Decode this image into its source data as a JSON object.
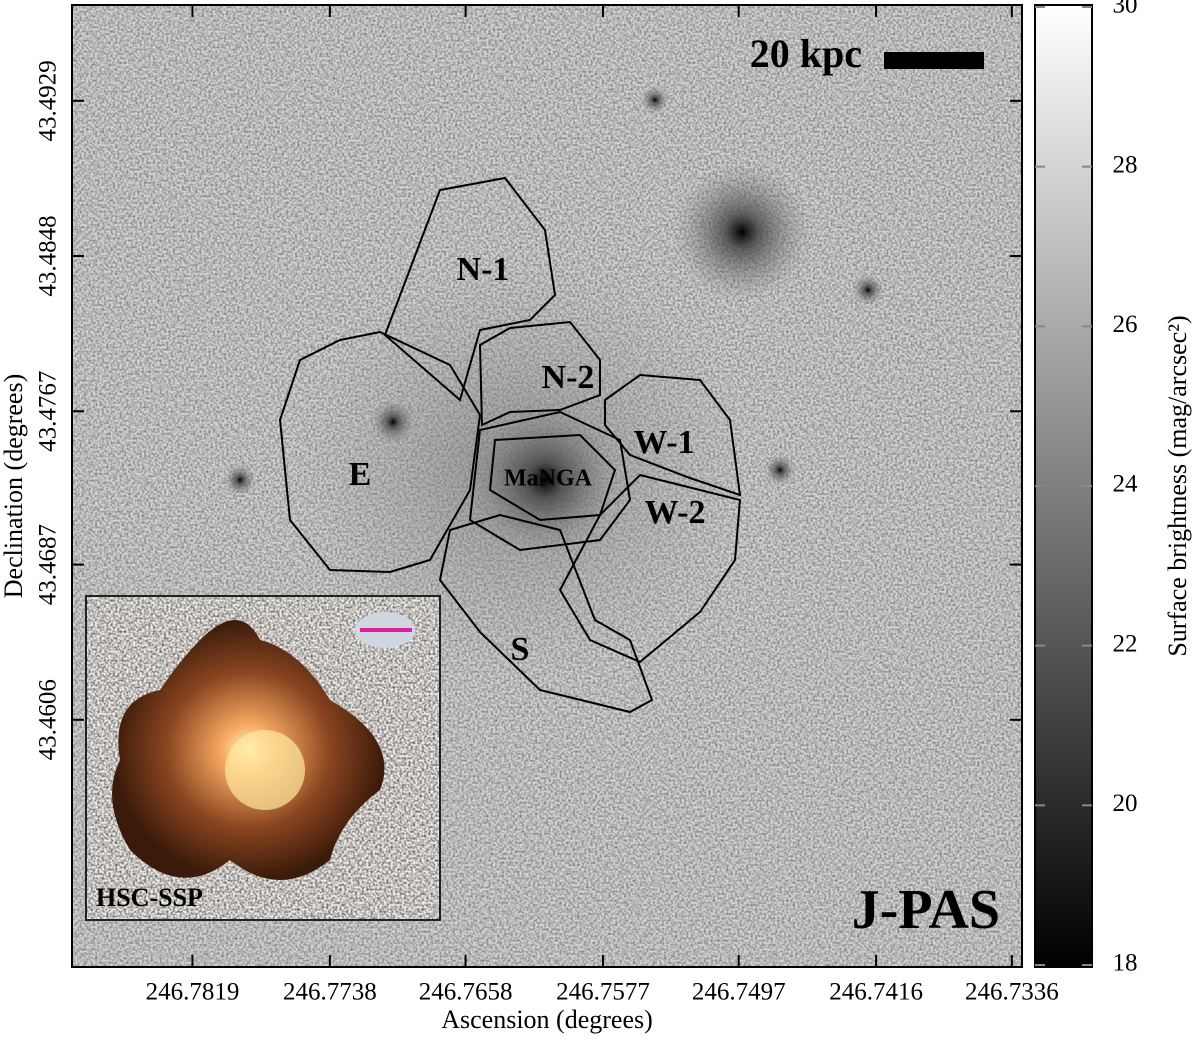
{
  "chart_data": {
    "type": "image",
    "xlabel": "Ascension (degrees)",
    "ylabel": "Declination (degrees)",
    "xlim": [
      246.789,
      246.733
    ],
    "xticks": [
      246.7819,
      246.7738,
      246.7658,
      246.7577,
      246.7497,
      246.7416,
      246.7336
    ],
    "ylim": [
      43.4477,
      43.4979
    ],
    "yticks": [
      43.4606,
      43.4687,
      43.4767,
      43.4848,
      43.4929
    ],
    "colorbar": {
      "label": "Surface brightness (mag/arcsec²)",
      "lim": [
        18,
        30
      ],
      "ticks": [
        18,
        20,
        22,
        24,
        26,
        28,
        30
      ],
      "colors": [
        "#000000",
        "#ffffff"
      ]
    },
    "annotations": [
      {
        "text": "N-1",
        "color": "#5a1a6e"
      },
      {
        "text": "N-2",
        "color": "#9b4aa8"
      },
      {
        "text": "W-1",
        "color": "#cc1010"
      },
      {
        "text": "W-2",
        "color": "#f07070"
      },
      {
        "text": "E",
        "color": "#22cc22"
      },
      {
        "text": "MaNGA",
        "color": "#f08a10"
      },
      {
        "text": "S",
        "color": "#2222cc"
      }
    ],
    "scale_bar": "20 kpc",
    "survey": {
      "text": "J-PAS",
      "color": "#b01212"
    },
    "inset": {
      "text": "HSC-SSP",
      "color": "#b01212"
    }
  }
}
